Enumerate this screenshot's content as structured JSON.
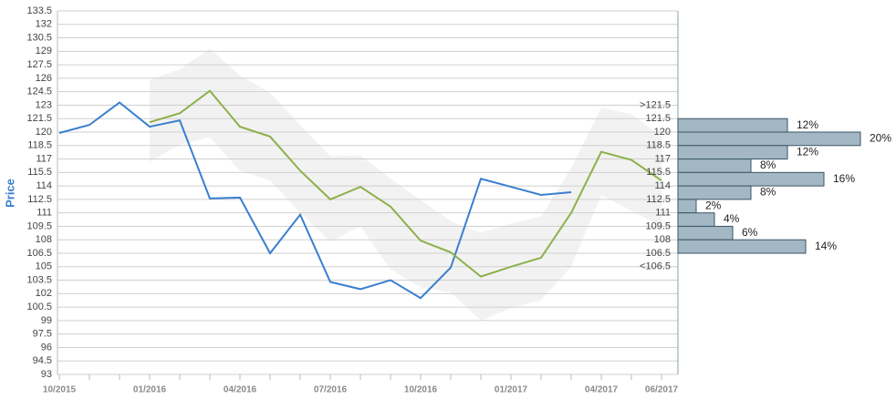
{
  "chart_data": {
    "type": "line",
    "y_label": "Price",
    "categories": [
      "10/2015",
      null,
      null,
      "01/2016",
      null,
      null,
      "04/2016",
      null,
      null,
      "07/2016",
      null,
      null,
      "10/2016",
      null,
      null,
      "01/2017",
      null,
      null,
      "04/2017",
      null,
      "06/2017"
    ],
    "series": [
      {
        "color": "#3a7fcf",
        "values": [
          119.9,
          120.8,
          123.3,
          120.6,
          121.3,
          112.6,
          112.7,
          106.5,
          110.8,
          103.3,
          102.5,
          103.5,
          101.5,
          104.9,
          114.8,
          113.9,
          113.0,
          113.3,
          null,
          null,
          null
        ]
      },
      {
        "color": "#8db04a",
        "values": [
          null,
          null,
          null,
          121.1,
          122.1,
          124.6,
          120.6,
          119.5,
          115.7,
          112.5,
          113.9,
          111.7,
          107.9,
          106.6,
          103.9,
          105.0,
          106.0,
          111.0,
          117.8,
          116.9,
          114.6
        ]
      }
    ],
    "band": {
      "color": "#f2f2f2",
      "upper": [
        null,
        null,
        null,
        125.8,
        127.0,
        129.3,
        126.3,
        124.4,
        120.8,
        117.3,
        117.4,
        114.8,
        112.4,
        110.1,
        108.8,
        109.8,
        110.6,
        116.0,
        122.7,
        122.0,
        119.5
      ],
      "lower": [
        null,
        null,
        null,
        116.7,
        118.6,
        119.4,
        115.7,
        114.6,
        111.0,
        107.8,
        109.5,
        104.7,
        102.7,
        102.1,
        99.0,
        100.4,
        101.3,
        105.0,
        113.0,
        111.2,
        109.5
      ]
    },
    "ylim": [
      93,
      133.5
    ],
    "yticks": [
      93,
      94.5,
      96,
      97.5,
      99,
      100.5,
      102,
      103.5,
      105,
      106.5,
      108,
      109.5,
      111,
      112.5,
      114,
      115.5,
      117,
      118.5,
      120,
      121.5,
      123,
      124.5,
      126,
      127.5,
      129,
      130.5,
      132,
      133.5
    ],
    "grid": true,
    "histogram": {
      "color": "#a3b8c4",
      "edge_color": "#3a5566",
      "above_label": ">121.5",
      "below_label": "<106.5",
      "bins": [
        121.5,
        120,
        118.5,
        117,
        115.5,
        114,
        112.5,
        111,
        109.5,
        108,
        106.5
      ],
      "values": [
        12,
        20,
        12,
        8,
        16,
        8,
        2,
        4,
        6,
        14
      ],
      "value_labels": [
        "12%",
        "20%",
        "12%",
        "8%",
        "16%",
        "8%",
        "2%",
        "4%",
        "6%",
        "14%"
      ]
    }
  }
}
